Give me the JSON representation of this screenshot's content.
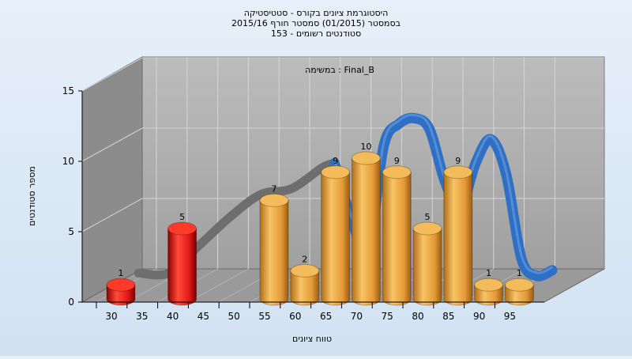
{
  "chart_data": {
    "type": "bar",
    "title_lines": [
      "היסטוגרמת ציונים בקורס - סטטיסטיקה",
      "בסמסטר  (01/2015)  סמסטר חורף 2015/16",
      "סטודנטים רשומים - 153"
    ],
    "subtitle": "במשימה : Final_B",
    "xlabel": "טווח ציונים",
    "ylabel": "מספר סטודנטים",
    "ylim": [
      0,
      15
    ],
    "y_ticks": [
      0,
      5,
      10,
      15
    ],
    "x_ticks": [
      30,
      35,
      40,
      45,
      50,
      55,
      60,
      65,
      70,
      75,
      80,
      85,
      90,
      95
    ],
    "bars": [
      {
        "x": 30,
        "value": 1,
        "color": "red"
      },
      {
        "x": 40,
        "value": 5,
        "color": "red"
      },
      {
        "x": 55,
        "value": 7,
        "color": "orange"
      },
      {
        "x": 60,
        "value": 2,
        "color": "orange"
      },
      {
        "x": 65,
        "value": 9,
        "color": "orange"
      },
      {
        "x": 70,
        "value": 10,
        "color": "orange"
      },
      {
        "x": 75,
        "value": 9,
        "color": "orange"
      },
      {
        "x": 80,
        "value": 5,
        "color": "orange"
      },
      {
        "x": 85,
        "value": 9,
        "color": "orange"
      },
      {
        "x": 90,
        "value": 1,
        "color": "orange"
      },
      {
        "x": 95,
        "value": 1,
        "color": "orange"
      }
    ],
    "curve": {
      "x": [
        30,
        35,
        40,
        45,
        50,
        55,
        60,
        62,
        65,
        67.5,
        70,
        72.5,
        75,
        77.5,
        80,
        82.5,
        85,
        87.5,
        90,
        92.5,
        95,
        97.5
      ],
      "y": [
        1,
        1,
        3,
        5,
        6.6,
        7,
        8.5,
        8.8,
        4.5,
        2.5,
        10,
        11.6,
        12,
        11.2,
        7.5,
        5.6,
        8.8,
        10.5,
        8,
        2,
        0.8,
        1.2
      ]
    },
    "grid": true,
    "colors": {
      "red": "#e01818",
      "orange": "#e8a540",
      "curve_back": "#6e6e6e",
      "curve_front": "#2f6fc4",
      "wall": "#a8a8a8",
      "side_wall": "#8c8c8c",
      "floor": "#9a9a9a"
    }
  }
}
